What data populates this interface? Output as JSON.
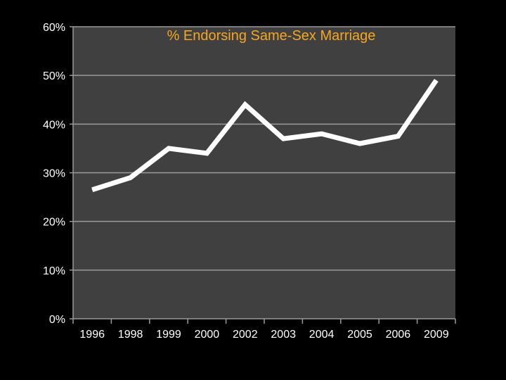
{
  "chart_data": {
    "type": "line",
    "title": "% Endorsing Same-Sex Marriage",
    "xlabel": "",
    "ylabel": "",
    "categories": [
      "1996",
      "1998",
      "1999",
      "2000",
      "2002",
      "2003",
      "2004",
      "2005",
      "2006",
      "2009"
    ],
    "series": [
      {
        "values": [
          26.5,
          29,
          35,
          34,
          44,
          37,
          38,
          36,
          37.5,
          49
        ]
      }
    ],
    "ylim": [
      0,
      60
    ],
    "yticks": [
      0,
      10,
      20,
      30,
      40,
      50,
      60
    ],
    "ytick_labels": [
      "0%",
      "10%",
      "20%",
      "30%",
      "40%",
      "50%",
      "60%"
    ],
    "grid": true,
    "legend": "none",
    "colors": {
      "page_background": "#000000",
      "plot_background": "#404040",
      "gridline": "#9a9a9a",
      "axis": "#9a9a9a",
      "line": "#ffffff",
      "title": "#f5a623",
      "tick_text": "#ffffff"
    }
  }
}
